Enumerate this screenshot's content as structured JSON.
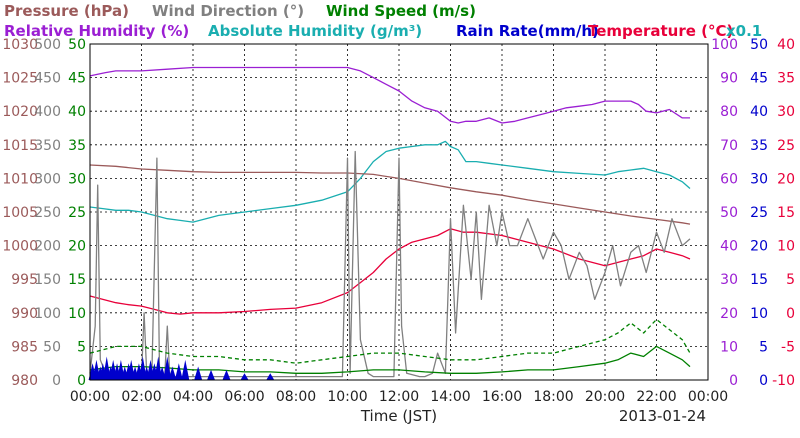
{
  "chart_data": {
    "type": "line",
    "date_label": "2013-01-24",
    "xlabel": "Time (JST)",
    "x_ticks": [
      "00:00",
      "02:00",
      "04:00",
      "06:00",
      "08:00",
      "10:00",
      "12:00",
      "14:00",
      "16:00",
      "18:00",
      "20:00",
      "22:00",
      "00:00"
    ],
    "x_unit": "hours",
    "x_range": [
      0,
      24
    ],
    "grid": true,
    "legend": [
      {
        "text": "Pressure (hPa)",
        "color": "#9b5a5a"
      },
      {
        "text": "Wind Direction (°)",
        "color": "#808080"
      },
      {
        "text": "Wind Speed (m/s)",
        "color": "#008000"
      },
      {
        "text": "Relative Humidity (%)",
        "color": "#9b1fd3"
      },
      {
        "text": "Absolute Humidity (g/m³)",
        "color": "#1aaeb0"
      },
      {
        "text": "Rain Rate(mm/h)",
        "color": "#0000cc"
      },
      {
        "text": "Temperature (°C)",
        "color": "#e8003a"
      },
      {
        "text": "x0.1",
        "color": "#1aaeb0"
      }
    ],
    "axes": {
      "pressure": {
        "color": "#9b5a5a",
        "range": [
          980,
          1030
        ],
        "ticks": [
          "1030",
          "1025",
          "1020",
          "1015",
          "1010",
          "1005",
          "1000",
          "995",
          "990",
          "985",
          "980"
        ]
      },
      "wind_direction": {
        "color": "#808080",
        "range": [
          0,
          500
        ],
        "ticks": [
          "500",
          "450",
          "400",
          "350",
          "300",
          "250",
          "200",
          "150",
          "100",
          "50",
          "0"
        ]
      },
      "wind_speed": {
        "color": "#008000",
        "range": [
          0,
          50
        ],
        "ticks": [
          "50",
          "45",
          "40",
          "35",
          "30",
          "25",
          "20",
          "15",
          "10",
          "5",
          "0"
        ]
      },
      "humidity": {
        "color": "#9b1fd3",
        "range": [
          0,
          100
        ],
        "ticks": [
          "100",
          "90",
          "80",
          "70",
          "60",
          "50",
          "40",
          "30",
          "20",
          "10",
          "0"
        ]
      },
      "rain_rate": {
        "color": "#0000cc",
        "range": [
          0,
          50
        ],
        "ticks": [
          "50",
          "45",
          "40",
          "35",
          "30",
          "25",
          "20",
          "15",
          "10",
          "5",
          "0"
        ]
      },
      "temperature": {
        "color": "#e8003a",
        "range": [
          -10,
          40
        ],
        "ticks": [
          "40",
          "35",
          "30",
          "25",
          "20",
          "15",
          "10",
          "5",
          "0",
          "-5",
          "-10"
        ]
      }
    },
    "series": [
      {
        "name": "Relative Humidity (%)",
        "axis": "humidity",
        "color": "#9b1fd3",
        "x": [
          0,
          0.3,
          0.6,
          1.0,
          1.5,
          2.0,
          3.0,
          4.0,
          5.0,
          6.0,
          7.0,
          8.0,
          9.0,
          10.0,
          10.5,
          11.0,
          11.5,
          12.0,
          12.5,
          13.0,
          13.5,
          14.0,
          14.3,
          14.6,
          15.0,
          15.5,
          16.0,
          16.5,
          17.0,
          17.5,
          18.0,
          18.5,
          19.0,
          19.5,
          20.0,
          20.5,
          21.0,
          21.3,
          21.6,
          22.0,
          22.5,
          23.0,
          23.3
        ],
        "y": [
          90.5,
          91.0,
          91.5,
          92.0,
          92.0,
          92.0,
          92.5,
          93.0,
          93.0,
          93.0,
          93.0,
          93.0,
          93.0,
          93.0,
          92.0,
          90.0,
          88.0,
          86.0,
          83.0,
          81.0,
          80.0,
          77.0,
          76.5,
          77.0,
          77.0,
          78.0,
          76.5,
          77.0,
          78.0,
          79.0,
          80.0,
          81.0,
          81.5,
          82.0,
          83.0,
          83.0,
          83.0,
          82.0,
          80.0,
          79.5,
          80.5,
          78.0,
          78.0
        ]
      },
      {
        "name": "Absolute Humidity (g/m³)",
        "axis": "humidity",
        "color": "#1aaeb0",
        "x": [
          0,
          0.5,
          1.0,
          1.5,
          2.0,
          2.5,
          3.0,
          3.5,
          4.0,
          5.0,
          6.0,
          7.0,
          8.0,
          9.0,
          10.0,
          10.5,
          11.0,
          11.5,
          12.0,
          12.5,
          13.0,
          13.5,
          13.8,
          14.0,
          14.3,
          14.6,
          15.0,
          15.5,
          16.0,
          17.0,
          18.0,
          19.0,
          20.0,
          20.5,
          21.0,
          21.5,
          22.0,
          22.5,
          23.0,
          23.3
        ],
        "y": [
          51.5,
          51.0,
          50.5,
          50.5,
          50.0,
          49.0,
          48.0,
          47.5,
          47.0,
          49.0,
          50.0,
          51.0,
          52.0,
          53.5,
          56.0,
          60.0,
          65.0,
          68.0,
          69.0,
          69.5,
          70.0,
          70.0,
          71.0,
          69.5,
          68.5,
          65.0,
          65.0,
          64.5,
          64.0,
          63.0,
          62.0,
          61.5,
          61.0,
          62.0,
          62.5,
          63.0,
          62.0,
          61.0,
          59.0,
          57.0
        ]
      },
      {
        "name": "Pressure (hPa)",
        "axis": "pressure",
        "color": "#9b5a5a",
        "x": [
          0,
          1,
          2,
          3,
          4,
          5,
          6,
          7,
          8,
          9,
          10,
          11,
          12,
          13,
          14,
          15,
          16,
          17,
          18,
          19,
          20,
          21,
          22,
          23,
          23.3
        ],
        "y": [
          1012.0,
          1011.8,
          1011.4,
          1011.2,
          1011.0,
          1010.9,
          1010.9,
          1010.9,
          1010.9,
          1010.8,
          1010.8,
          1010.6,
          1010.0,
          1009.3,
          1008.6,
          1008.0,
          1007.5,
          1006.8,
          1006.2,
          1005.6,
          1005.0,
          1004.4,
          1003.9,
          1003.4,
          1003.2
        ]
      },
      {
        "name": "Temperature (°C)",
        "axis": "temperature",
        "color": "#e8003a",
        "x": [
          0,
          0.5,
          1.0,
          1.5,
          2.0,
          2.5,
          3.0,
          3.5,
          4.0,
          5.0,
          6.0,
          7.0,
          8.0,
          9.0,
          10.0,
          10.5,
          11.0,
          11.5,
          12.0,
          12.5,
          13.0,
          13.5,
          14.0,
          14.5,
          15.0,
          16.0,
          17.0,
          18.0,
          19.0,
          20.0,
          20.5,
          21.0,
          21.5,
          22.0,
          22.5,
          23.0,
          23.3
        ],
        "y": [
          2.5,
          2.0,
          1.5,
          1.2,
          1.0,
          0.5,
          0.0,
          -0.2,
          0.0,
          0.0,
          0.2,
          0.5,
          0.7,
          1.5,
          3.0,
          4.5,
          6.0,
          8.0,
          9.5,
          10.5,
          11.0,
          11.5,
          12.5,
          12.0,
          12.0,
          11.5,
          10.5,
          9.5,
          8.0,
          7.0,
          7.5,
          8.0,
          8.5,
          9.5,
          9.0,
          8.5,
          8.0
        ]
      },
      {
        "name": "Wind Direction (°)",
        "axis": "wind_direction",
        "color": "#808080",
        "x": [
          0,
          0.2,
          0.3,
          0.4,
          0.6,
          1.0,
          1.5,
          2.0,
          2.1,
          2.2,
          2.4,
          2.6,
          2.7,
          2.9,
          3.0,
          3.1,
          3.3,
          3.6,
          4,
          5,
          6,
          7,
          8,
          9,
          9.8,
          10.0,
          10.1,
          10.3,
          10.5,
          10.8,
          11.0,
          11.5,
          11.8,
          12.0,
          12.1,
          12.3,
          12.8,
          13.0,
          13.3,
          13.5,
          13.8,
          14.0,
          14.2,
          14.5,
          14.8,
          15.0,
          15.2,
          15.5,
          15.8,
          16.0,
          16.3,
          16.6,
          17.0,
          17.3,
          17.6,
          18.0,
          18.3,
          18.6,
          19.0,
          19.3,
          19.6,
          20.0,
          20.3,
          20.6,
          21.0,
          21.3,
          21.6,
          22.0,
          22.3,
          22.6,
          23.0,
          23.3
        ],
        "y": [
          10,
          80,
          290,
          30,
          10,
          5,
          5,
          5,
          100,
          10,
          5,
          330,
          10,
          5,
          80,
          5,
          5,
          5,
          5,
          5,
          5,
          5,
          5,
          5,
          5,
          330,
          10,
          340,
          60,
          10,
          5,
          5,
          5,
          330,
          80,
          10,
          5,
          5,
          10,
          40,
          10,
          240,
          70,
          260,
          150,
          250,
          120,
          260,
          200,
          250,
          200,
          200,
          240,
          210,
          180,
          220,
          200,
          150,
          190,
          170,
          120,
          160,
          200,
          140,
          190,
          200,
          160,
          220,
          190,
          240,
          200,
          210
        ]
      },
      {
        "name": "Wind Speed (m/s)",
        "axis": "wind_speed",
        "color": "#008000",
        "x": [
          0,
          1,
          2,
          3,
          4,
          5,
          6,
          7,
          8,
          9,
          10,
          11,
          12,
          13,
          14,
          15,
          16,
          17,
          18,
          19,
          20,
          20.5,
          21,
          21.5,
          22,
          22.5,
          23,
          23.3
        ],
        "y": [
          1.5,
          2.0,
          2.0,
          1.8,
          1.5,
          1.5,
          1.2,
          1.2,
          1.0,
          1.0,
          1.2,
          1.5,
          1.5,
          1.2,
          1.0,
          1.0,
          1.2,
          1.5,
          1.5,
          2.0,
          2.5,
          3.0,
          4.0,
          3.5,
          5.0,
          4.0,
          3.0,
          2.0
        ]
      },
      {
        "name": "Wind Speed (m/s)",
        "axis": "wind_speed",
        "style": "dashed",
        "color": "#008000",
        "x": [
          0,
          1,
          2,
          3,
          4,
          5,
          6,
          7,
          8,
          9,
          10,
          11,
          12,
          13,
          14,
          15,
          16,
          17,
          18,
          19,
          20,
          20.5,
          21,
          21.5,
          22,
          22.5,
          23,
          23.3
        ],
        "y": [
          4.0,
          5.0,
          5.0,
          4.0,
          3.5,
          3.5,
          3.0,
          3.0,
          2.5,
          3.0,
          3.5,
          4.0,
          4.0,
          3.5,
          3.0,
          3.0,
          3.5,
          4.0,
          4.0,
          5.0,
          6.0,
          7.0,
          8.5,
          7.0,
          9.0,
          7.5,
          6.0,
          4.0
        ]
      },
      {
        "name": "Rain Rate(mm/h)",
        "axis": "rain_rate",
        "type": "spikes",
        "color": "#0000cc",
        "x": [
          0.1,
          0.25,
          0.4,
          0.5,
          0.65,
          0.8,
          0.9,
          1.05,
          1.2,
          1.35,
          1.5,
          1.6,
          1.75,
          1.9,
          2.05,
          2.2,
          2.35,
          2.5,
          2.65,
          2.8,
          3.0,
          3.2,
          3.45,
          3.7,
          4.2,
          4.7,
          5.3,
          6.0,
          7.0
        ],
        "y": [
          2.5,
          3.0,
          2.0,
          2.5,
          3.5,
          2.0,
          3.0,
          2.5,
          3.0,
          2.0,
          2.5,
          3.0,
          2.0,
          2.5,
          3.5,
          2.0,
          3.0,
          2.5,
          3.5,
          2.0,
          3.5,
          2.0,
          2.5,
          3.0,
          2.0,
          1.5,
          1.5,
          1.0,
          1.0
        ]
      }
    ]
  }
}
